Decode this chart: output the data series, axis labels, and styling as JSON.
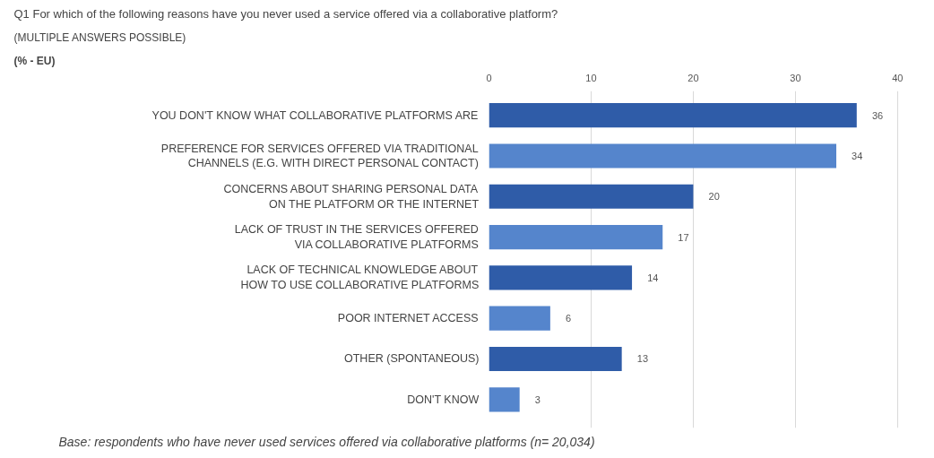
{
  "chart_data": {
    "type": "bar",
    "orientation": "horizontal",
    "title": "Q1  For which of the following reasons have you never used a service offered via a collaborative platform?",
    "subtitle": "(MULTIPLE ANSWERS POSSIBLE)",
    "categories": [
      "YOU DON'T KNOW WHAT COLLABORATIVE PLATFORMS ARE",
      "PREFERENCE FOR SERVICES OFFERED VIA TRADITIONAL\nCHANNELS (E.G. WITH DIRECT PERSONAL CONTACT)",
      "CONCERNS ABOUT SHARING PERSONAL DATA\nON THE PLATFORM OR THE INTERNET",
      "LACK OF TRUST IN THE SERVICES OFFERED\nVIA COLLABORATIVE PLATFORMS",
      "LACK OF TECHNICAL KNOWLEDGE ABOUT\nHOW TO USE COLLABORATIVE PLATFORMS",
      "POOR INTERNET ACCESS",
      "OTHER (SPONTANEOUS)",
      "DON'T KNOW"
    ],
    "values": [
      36,
      34,
      20,
      17,
      14,
      6,
      13,
      3
    ],
    "colors": [
      "#2f5ca8",
      "#5585cc",
      "#2f5ca8",
      "#5585cc",
      "#2f5ca8",
      "#5585cc",
      "#2f5ca8",
      "#5585cc"
    ],
    "xlim": [
      0,
      40
    ],
    "xticks": [
      0,
      10,
      20,
      30,
      40
    ],
    "grid": "x",
    "data_labels": true,
    "annotations": [
      "(% - EU)",
      "Base: respondents who have never used services offered via collaborative platforms (n= 20,034)"
    ]
  }
}
